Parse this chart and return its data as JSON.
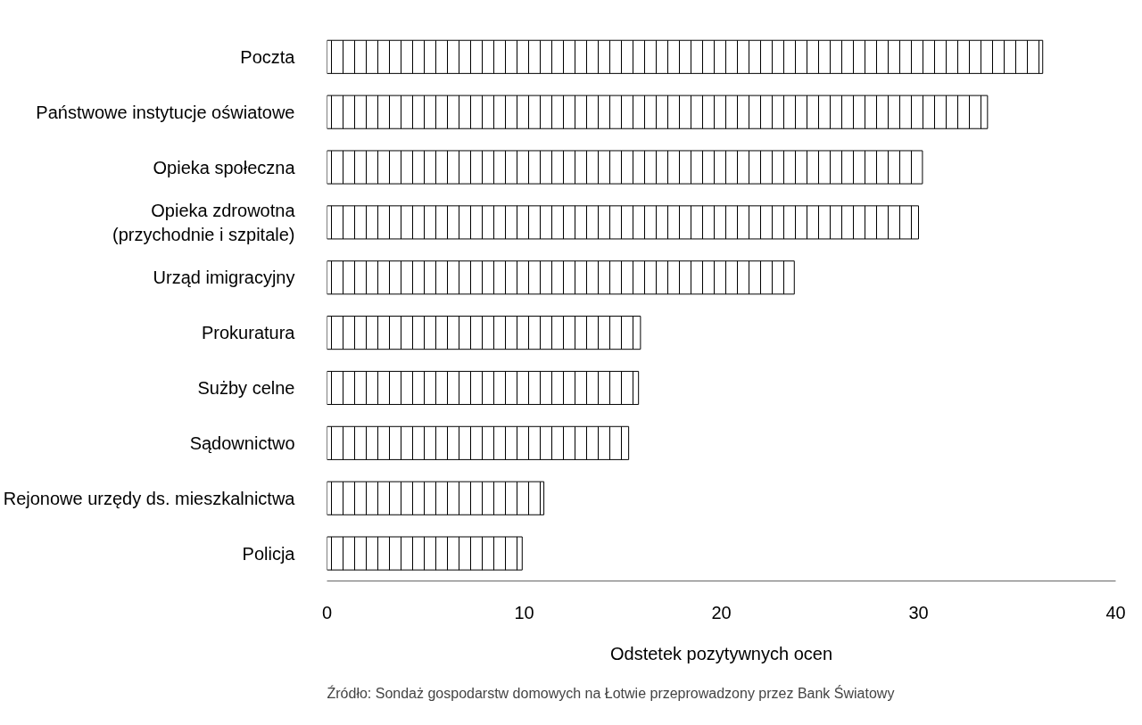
{
  "chart_data": {
    "type": "bar",
    "orientation": "horizontal",
    "xlabel": "Odstetek pozytywnych ocen",
    "categories": [
      "Poczta",
      "Państwowe instytucje oświatowe",
      "Opieka społeczna",
      "Opieka zdrowotna\n(przychodnie i szpitale)",
      "Urząd imigracyjny",
      "Prokuratura",
      "Sużby celne",
      "Sądownictwo",
      "Rejonowe urzędy ds. mieszkalnictwa",
      "Policja"
    ],
    "values": [
      36.3,
      33.5,
      30.2,
      30.0,
      23.7,
      15.9,
      15.8,
      15.3,
      11.0,
      9.9
    ],
    "color": "#ffffff",
    "xlim": [
      0,
      40
    ],
    "xticks": [
      0,
      10,
      20,
      30,
      40
    ],
    "grid": false,
    "annotations": [
      "Źródło: Sondaż gospodarstw domowych na Łotwie przeprowadzony przez Bank Światowy"
    ]
  }
}
